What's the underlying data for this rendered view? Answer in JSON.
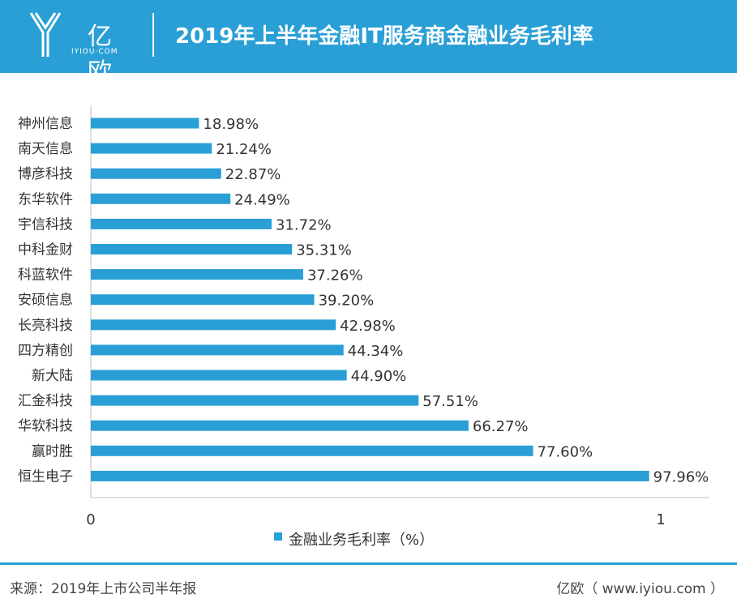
{
  "header": {
    "logo_text": "亿欧",
    "logo_sub": "IYIOU·COM",
    "title": "2019年上半年金融IT服务商金融业务毛利率"
  },
  "colors": {
    "header_bg": "#2a9fd6",
    "bar": "#2a9fd6",
    "axis": "#bfbfbf",
    "text": "#333333"
  },
  "chart_data": {
    "type": "bar",
    "orientation": "horizontal",
    "title": "",
    "categories": [
      "神州信息",
      "南天信息",
      "博彦科技",
      "东华软件",
      "宇信科技",
      "中科金财",
      "科蓝软件",
      "安硕信息",
      "长亮科技",
      "四方精创",
      "新大陆",
      "汇金科技",
      "华软科技",
      "赢时胜",
      "恒生电子"
    ],
    "series": [
      {
        "name": "金融业务毛利率（%）",
        "values": [
          0.1898,
          0.2124,
          0.2287,
          0.2449,
          0.3172,
          0.3531,
          0.3726,
          0.392,
          0.4298,
          0.4434,
          0.449,
          0.5751,
          0.6627,
          0.776,
          0.9796
        ],
        "labels": [
          "18.98%",
          "21.24%",
          "22.87%",
          "24.49%",
          "31.72%",
          "35.31%",
          "37.26%",
          "39.20%",
          "42.98%",
          "44.34%",
          "44.90%",
          "57.51%",
          "66.27%",
          "77.60%",
          "97.96%"
        ]
      }
    ],
    "xlim": [
      0,
      1
    ],
    "x_ticks": [
      "0",
      "1"
    ],
    "legend": "bottom-center",
    "grid": false
  },
  "footer": {
    "source": "来源：2019年上市公司半年报",
    "credit": "亿欧（ www.iyiou.com ）"
  }
}
